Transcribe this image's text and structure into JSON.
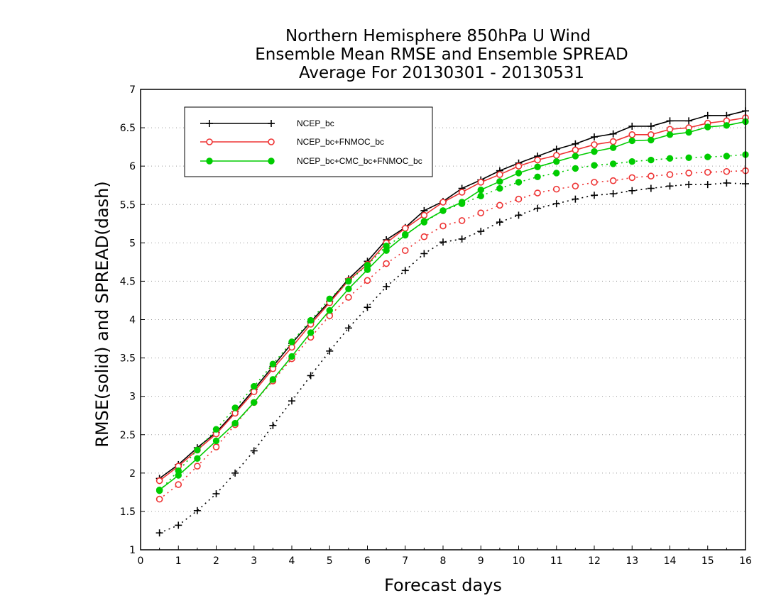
{
  "chart_data": {
    "type": "line",
    "title": [
      "Northern Hemisphere 850hPa U Wind",
      "Ensemble Mean RMSE and Ensemble SPREAD",
      "Average For 20130301 - 20130531"
    ],
    "xlabel": "Forecast days",
    "ylabel": "RMSE(solid) and SPREAD(dash)",
    "xlim": [
      0,
      16
    ],
    "ylim": [
      1,
      7
    ],
    "x_ticks": [
      "0",
      "1",
      "2",
      "3",
      "4",
      "5",
      "6",
      "7",
      "8",
      "9",
      "10",
      "11",
      "12",
      "13",
      "14",
      "15",
      "16"
    ],
    "y_ticks": [
      "1",
      "1.5",
      "2",
      "2.5",
      "3",
      "3.5",
      "4",
      "4.5",
      "5",
      "5.5",
      "6",
      "6.5",
      "7"
    ],
    "grid": "horizontal-dotted",
    "legend_position": "top-left",
    "x": [
      0.5,
      1,
      1.5,
      2,
      2.5,
      3,
      3.5,
      4,
      4.5,
      5,
      5.5,
      6,
      6.5,
      7,
      7.5,
      8,
      8.5,
      9,
      9.5,
      10,
      10.5,
      11,
      11.5,
      12,
      12.5,
      13,
      13.5,
      14,
      14.5,
      15,
      15.5,
      16
    ],
    "series": [
      {
        "name": "NCEP_bc",
        "color": "#000000",
        "marker": "plus",
        "rmse": [
          1.93,
          2.11,
          2.33,
          2.53,
          2.8,
          3.09,
          3.39,
          3.69,
          3.97,
          4.24,
          4.53,
          4.76,
          5.04,
          5.2,
          5.42,
          5.54,
          5.71,
          5.82,
          5.94,
          6.04,
          6.13,
          6.22,
          6.29,
          6.38,
          6.42,
          6.52,
          6.52,
          6.59,
          6.59,
          6.66,
          6.66,
          6.72
        ],
        "spread": [
          1.22,
          1.32,
          1.51,
          1.73,
          2.0,
          2.29,
          2.62,
          2.94,
          3.27,
          3.59,
          3.89,
          4.16,
          4.43,
          4.64,
          4.86,
          5.01,
          5.05,
          5.15,
          5.27,
          5.36,
          5.45,
          5.51,
          5.57,
          5.62,
          5.64,
          5.68,
          5.71,
          5.74,
          5.76,
          5.76,
          5.78,
          5.77
        ]
      },
      {
        "name": "NCEP_bc+FNMOC_bc",
        "color": "#ee3333",
        "marker": "open-circle",
        "rmse": [
          1.9,
          2.09,
          2.3,
          2.51,
          2.78,
          3.06,
          3.36,
          3.64,
          3.94,
          4.22,
          4.51,
          4.72,
          5.0,
          5.19,
          5.36,
          5.53,
          5.66,
          5.79,
          5.89,
          6.0,
          6.08,
          6.14,
          6.21,
          6.28,
          6.32,
          6.41,
          6.41,
          6.48,
          6.5,
          6.56,
          6.59,
          6.63
        ],
        "spread": [
          1.66,
          1.85,
          2.09,
          2.34,
          2.63,
          2.92,
          3.2,
          3.49,
          3.77,
          4.05,
          4.29,
          4.51,
          4.73,
          4.9,
          5.08,
          5.22,
          5.29,
          5.39,
          5.49,
          5.57,
          5.65,
          5.7,
          5.74,
          5.79,
          5.81,
          5.85,
          5.87,
          5.89,
          5.91,
          5.92,
          5.93,
          5.94
        ]
      },
      {
        "name": "NCEP_bc+CMC_bc+FNMOC_bc",
        "color": "#00cc00",
        "marker": "filled-circle",
        "rmse": [
          1.78,
          1.97,
          2.19,
          2.42,
          2.65,
          2.92,
          3.22,
          3.52,
          3.83,
          4.12,
          4.4,
          4.65,
          4.9,
          5.1,
          5.28,
          5.42,
          5.53,
          5.69,
          5.8,
          5.91,
          5.99,
          6.06,
          6.13,
          6.19,
          6.24,
          6.33,
          6.34,
          6.41,
          6.44,
          6.51,
          6.53,
          6.58
        ],
        "spread": [
          1.77,
          2.03,
          2.3,
          2.57,
          2.85,
          3.13,
          3.42,
          3.71,
          3.99,
          4.27,
          4.5,
          4.71,
          4.96,
          5.11,
          5.27,
          5.42,
          5.51,
          5.61,
          5.71,
          5.79,
          5.86,
          5.91,
          5.97,
          6.01,
          6.03,
          6.06,
          6.08,
          6.1,
          6.11,
          6.12,
          6.13,
          6.15
        ]
      }
    ]
  }
}
